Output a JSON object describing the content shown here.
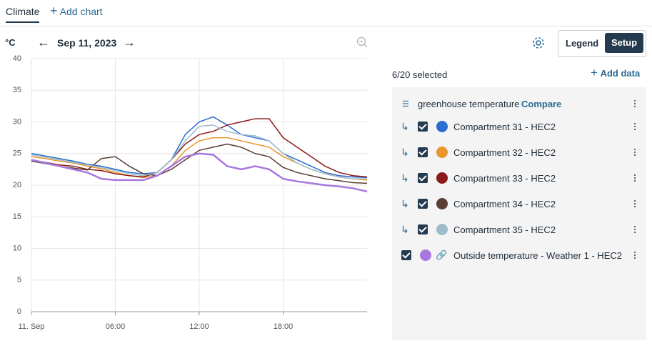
{
  "tabs": {
    "active": "Climate",
    "add": "Add chart"
  },
  "toolbar": {
    "date": "Sep 11, 2023",
    "legend": "Legend",
    "setup": "Setup"
  },
  "chart_data": {
    "type": "line",
    "ylabel": "°C",
    "x": [
      0,
      1,
      2,
      3,
      4,
      5,
      6,
      7,
      8,
      9,
      10,
      11,
      12,
      13,
      14,
      15,
      16,
      17,
      18,
      19,
      20,
      21,
      22,
      23,
      24
    ],
    "xlim": [
      0,
      24
    ],
    "xticks": [
      {
        "value": 0,
        "label": "11. Sep"
      },
      {
        "value": 6,
        "label": "06:00"
      },
      {
        "value": 12,
        "label": "12:00"
      },
      {
        "value": 18,
        "label": "18:00"
      }
    ],
    "ylim": [
      0,
      40
    ],
    "yticks": [
      0,
      5,
      10,
      15,
      20,
      25,
      30,
      35,
      40
    ],
    "grid": true,
    "series": [
      {
        "name": "Compartment 31 - HEC2",
        "color": "#2a6ccf",
        "values": [
          25,
          24.6,
          24.2,
          23.8,
          23.3,
          23,
          22.5,
          22,
          21.8,
          22,
          24,
          28,
          30,
          30.8,
          29.5,
          28,
          27.5,
          27,
          25,
          24,
          23,
          22,
          21.5,
          21.3,
          21.2
        ]
      },
      {
        "name": "Compartment 32 - HEC2",
        "color": "#e8972e",
        "values": [
          24.5,
          24.2,
          23.8,
          23.5,
          23,
          22.6,
          22,
          21.5,
          21.2,
          21.5,
          23,
          25.5,
          27,
          27.5,
          27.5,
          27,
          26.5,
          26,
          24.5,
          23.5,
          22.5,
          21.8,
          21.3,
          21,
          20.8
        ]
      },
      {
        "name": "Compartment 33 - HEC2",
        "color": "#8b1a1a",
        "values": [
          24,
          23.6,
          23.2,
          23,
          22.5,
          22.3,
          21.8,
          21.5,
          21.3,
          22,
          24,
          26.5,
          28,
          28.5,
          29.5,
          30,
          30.5,
          30.5,
          27.5,
          26,
          24.5,
          23,
          22,
          21.5,
          21.3
        ]
      },
      {
        "name": "Compartment 34 - HEC2",
        "color": "#5a3e33",
        "values": [
          23.8,
          23.4,
          23,
          22.7,
          22.4,
          24.2,
          24.5,
          23,
          21.8,
          21.5,
          22.5,
          24,
          25.5,
          26,
          26.5,
          26,
          25,
          24.5,
          22.8,
          22,
          21.5,
          21,
          20.7,
          20.4,
          20.3
        ]
      },
      {
        "name": "Compartment 35 - HEC2",
        "color": "#9fbccb",
        "values": [
          24.8,
          24.4,
          24,
          23.6,
          23.2,
          22.8,
          22.3,
          21.8,
          21.5,
          22,
          24,
          27,
          29.3,
          29.5,
          28.5,
          28,
          27.8,
          27,
          25,
          23.5,
          22.5,
          21.8,
          21.3,
          21,
          21
        ]
      },
      {
        "name": "Outside temperature  - Weather 1 - HEC2",
        "color": "#a678e0",
        "values": [
          24,
          23.5,
          23,
          22.5,
          22,
          21,
          20.8,
          20.8,
          20.8,
          21.5,
          23,
          24.5,
          25,
          24.8,
          23,
          22.5,
          23,
          22.5,
          21,
          20.6,
          20.3,
          20,
          19.8,
          19.5,
          19
        ]
      }
    ]
  },
  "panel": {
    "selected": "6/20 selected",
    "add_data": "Add data",
    "group": "greenhouse temperature",
    "compare": "Compare"
  }
}
